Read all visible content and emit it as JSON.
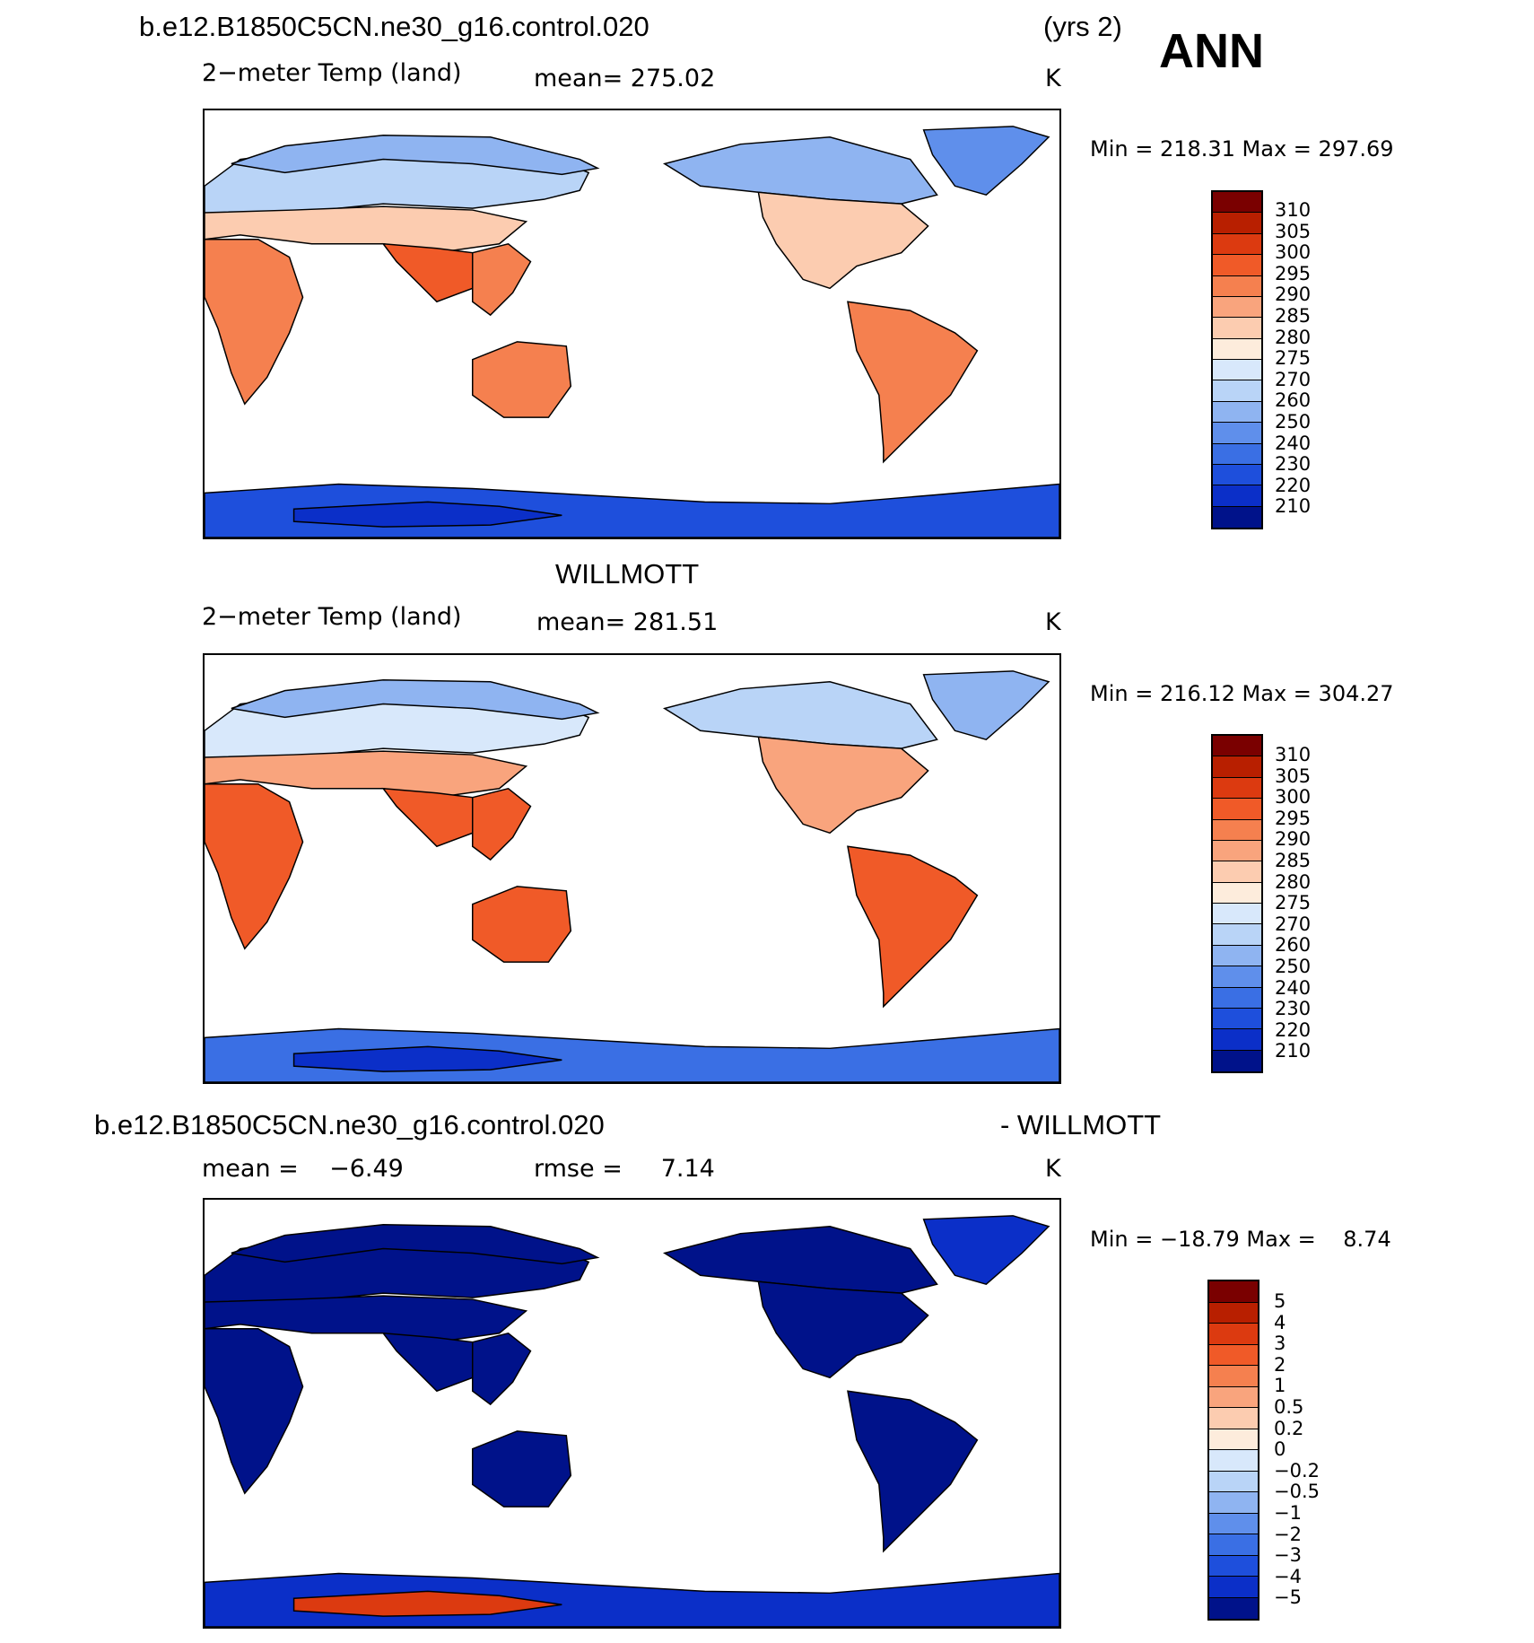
{
  "header": {
    "case_name": "b.e12.B1850C5CN.ne30_g16.control.020",
    "years": "(yrs 2)",
    "season": "ANN"
  },
  "panels": [
    {
      "id": "model",
      "subtitle_left": "2−meter Temp (land)",
      "subtitle_mid": "mean= 275.02",
      "units": "K",
      "minmax": "Min = 218.31 Max = 297.69",
      "colorbar_labels": [
        "310",
        "305",
        "300",
        "295",
        "290",
        "285",
        "280",
        "275",
        "270",
        "260",
        "250",
        "240",
        "230",
        "220",
        "210"
      ]
    },
    {
      "id": "obs",
      "title": "WILLMOTT",
      "subtitle_left": "2−meter Temp (land)",
      "subtitle_mid": "mean= 281.51",
      "units": "K",
      "minmax": "Min = 216.12 Max = 304.27",
      "colorbar_labels": [
        "310",
        "305",
        "300",
        "295",
        "290",
        "285",
        "280",
        "275",
        "270",
        "260",
        "250",
        "240",
        "230",
        "220",
        "210"
      ]
    },
    {
      "id": "diff",
      "title_left": "b.e12.B1850C5CN.ne30_g16.control.020",
      "title_right": "- WILLMOTT",
      "subtitle_left": "mean =    −6.49",
      "subtitle_mid": "rmse =     7.14",
      "units": "K",
      "minmax": "Min = −18.79 Max =    8.74",
      "colorbar_labels": [
        "5",
        "4",
        "3",
        "2",
        "1",
        "0.5",
        "0.2",
        "0",
        "−0.2",
        "−0.5",
        "−1",
        "−2",
        "−3",
        "−4",
        "−5"
      ]
    }
  ],
  "colors": {
    "abs_scale": [
      "#7a0000",
      "#b81f00",
      "#dc3a10",
      "#f05a28",
      "#f5804f",
      "#f9a47d",
      "#fcccb0",
      "#fdecdc",
      "#d8e8fb",
      "#b9d4f7",
      "#8fb4f1",
      "#5f8feb",
      "#3a6fe4",
      "#1e4fdc",
      "#0b2fc8",
      "#00128a"
    ],
    "diff_scale": [
      "#7a0000",
      "#b81f00",
      "#dc3a10",
      "#f05a28",
      "#f5804f",
      "#f9a47d",
      "#fcccb0",
      "#fdecdc",
      "#d8e8fb",
      "#b9d4f7",
      "#8fb4f1",
      "#5f8feb",
      "#3a6fe4",
      "#1e4fdc",
      "#0b2fc8",
      "#00128a"
    ]
  },
  "map_fills": {
    "model": {
      "arctic": "#8fb4f1",
      "siberia": "#b9d4f7",
      "midlat": "#fcccb0",
      "tropics": "#f5804f",
      "africa": "#f5804f",
      "india": "#f05a28",
      "australia": "#f5804f",
      "s_america": "#f5804f",
      "na_north": "#8fb4f1",
      "na_south": "#fcccb0",
      "greenland": "#5f8feb",
      "antarctic": "#1e4fdc",
      "antarctic_deep": "#0b2fc8"
    },
    "obs": {
      "arctic": "#8fb4f1",
      "siberia": "#d8e8fb",
      "midlat": "#f9a47d",
      "tropics": "#f05a28",
      "africa": "#f05a28",
      "india": "#f05a28",
      "australia": "#f05a28",
      "s_america": "#f05a28",
      "na_north": "#b9d4f7",
      "na_south": "#f9a47d",
      "greenland": "#8fb4f1",
      "antarctic": "#3a6fe4",
      "antarctic_deep": "#0b2fc8"
    },
    "diff": {
      "arctic": "#00128a",
      "siberia": "#00128a",
      "midlat": "#00128a",
      "tropics": "#00128a",
      "africa": "#00128a",
      "india": "#00128a",
      "australia": "#00128a",
      "s_america": "#00128a",
      "na_north": "#00128a",
      "na_south": "#00128a",
      "greenland": "#0b2fc8",
      "antarctic": "#0b2fc8",
      "antarctic_deep": "#dc3a10"
    }
  }
}
